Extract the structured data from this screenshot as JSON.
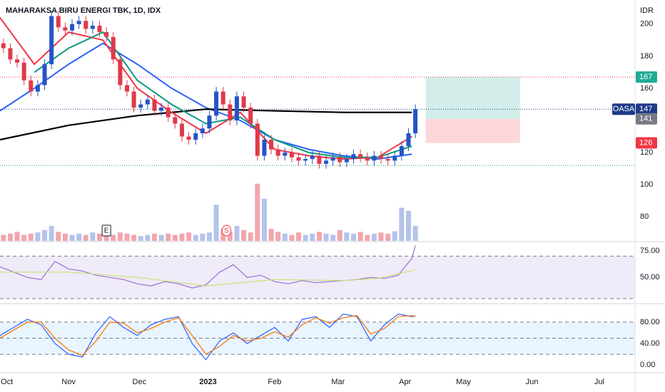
{
  "chart_data": [
    {
      "type": "candlestick",
      "title": "MAHARAKSA BIRU ENERGI TBK, 1D, IDX",
      "currency": "IDR",
      "up_color": "#2454c6",
      "down_color": "#e0394a",
      "xlim": [
        0,
        185
      ],
      "xticks": [
        {
          "value": 2,
          "label": "Oct"
        },
        {
          "value": 20,
          "label": "Nov"
        },
        {
          "value": 40.6,
          "label": "Dec"
        },
        {
          "value": 60.6,
          "label": "2023"
        },
        {
          "value": 80,
          "label": "Feb"
        },
        {
          "value": 98.5,
          "label": "Mar"
        },
        {
          "value": 118,
          "label": "Apr"
        },
        {
          "value": 135,
          "label": "May"
        },
        {
          "value": 155,
          "label": "Jun"
        },
        {
          "value": 174.6,
          "label": "Jul"
        }
      ],
      "ylim": [
        65,
        215
      ],
      "yticks": [
        80,
        100,
        120,
        160,
        180,
        200
      ],
      "grid": false,
      "x": [
        1,
        3,
        5,
        7,
        9,
        11,
        13,
        15,
        17,
        19,
        21,
        23,
        25,
        27,
        29,
        31,
        33,
        35,
        37,
        39,
        41,
        43,
        45,
        47,
        49,
        51,
        53,
        55,
        57,
        59,
        61,
        63,
        65,
        67,
        69,
        71,
        73,
        75,
        77,
        79,
        81,
        83,
        85,
        87,
        89,
        91,
        93,
        95,
        97,
        99,
        101,
        103,
        105,
        107,
        109,
        111,
        113,
        115,
        117,
        119,
        121
      ],
      "open": [
        188,
        185,
        178,
        176,
        165,
        158,
        162,
        175,
        205,
        198,
        196,
        200,
        202,
        197,
        199,
        195,
        192,
        178,
        162,
        158,
        148,
        150,
        153,
        146,
        148,
        142,
        138,
        130,
        128,
        132,
        135,
        143,
        158,
        150,
        140,
        155,
        148,
        138,
        118,
        128,
        122,
        118,
        120,
        117,
        115,
        116,
        118,
        113,
        115,
        117,
        114,
        116,
        119,
        117,
        115,
        118,
        116,
        115,
        118,
        124,
        132
      ],
      "high": [
        191,
        188,
        181,
        179,
        168,
        165,
        178,
        208,
        208,
        201,
        203,
        205,
        205,
        202,
        202,
        198,
        195,
        181,
        165,
        161,
        153,
        156,
        156,
        151,
        151,
        145,
        141,
        133,
        135,
        138,
        146,
        161,
        161,
        153,
        158,
        158,
        151,
        141,
        131,
        131,
        125,
        123,
        123,
        120,
        119,
        121,
        121,
        118,
        120,
        120,
        119,
        122,
        122,
        120,
        121,
        121,
        119,
        121,
        127,
        135,
        150
      ],
      "low": [
        182,
        175,
        173,
        162,
        155,
        155,
        159,
        172,
        195,
        193,
        193,
        197,
        194,
        194,
        192,
        189,
        175,
        159,
        155,
        145,
        145,
        147,
        143,
        143,
        139,
        135,
        127,
        125,
        125,
        129,
        132,
        140,
        147,
        137,
        137,
        145,
        135,
        115,
        115,
        119,
        115,
        115,
        114,
        112,
        112,
        113,
        110,
        110,
        112,
        111,
        111,
        113,
        114,
        112,
        112,
        113,
        112,
        112,
        115,
        121,
        129
      ],
      "close": [
        185,
        178,
        176,
        165,
        158,
        162,
        175,
        205,
        198,
        196,
        200,
        202,
        197,
        199,
        195,
        192,
        178,
        162,
        158,
        148,
        150,
        153,
        146,
        148,
        142,
        138,
        130,
        128,
        132,
        135,
        143,
        158,
        150,
        140,
        155,
        148,
        138,
        118,
        128,
        122,
        118,
        120,
        117,
        115,
        116,
        118,
        113,
        115,
        117,
        114,
        116,
        119,
        117,
        115,
        118,
        116,
        115,
        118,
        124,
        132,
        147
      ],
      "volume": [
        10,
        12,
        15,
        10,
        12,
        14,
        18,
        25,
        15,
        12,
        10,
        12,
        10,
        14,
        12,
        15,
        10,
        14,
        12,
        10,
        8,
        10,
        12,
        10,
        12,
        10,
        12,
        14,
        10,
        12,
        14,
        60,
        20,
        15,
        25,
        18,
        14,
        95,
        70,
        20,
        15,
        12,
        10,
        14,
        10,
        12,
        15,
        12,
        10,
        18,
        14,
        12,
        15,
        10,
        12,
        14,
        12,
        16,
        55,
        50,
        25
      ],
      "volume_ylim": [
        0,
        400
      ],
      "mas": [
        {
          "color": "#2962ff",
          "x": [
            0,
            10,
            20,
            30,
            40,
            50,
            60,
            70,
            80,
            90,
            100,
            110,
            120
          ],
          "values": [
            146,
            160,
            175,
            188,
            175,
            160,
            148,
            140,
            128,
            122,
            118,
            116,
            119
          ]
        },
        {
          "color": "#000000",
          "x": [
            0,
            20,
            40,
            60,
            80,
            100,
            120
          ],
          "values": [
            128,
            137,
            143,
            147,
            146,
            145,
            145
          ]
        },
        {
          "color": "#f23645",
          "x": [
            0,
            10,
            20,
            30,
            40,
            50,
            60,
            70,
            80,
            90,
            100,
            110,
            120
          ],
          "values": [
            204,
            175,
            195,
            190,
            160,
            145,
            132,
            145,
            122,
            118,
            116,
            117,
            130
          ]
        },
        {
          "color": "#089981",
          "x": [
            10,
            20,
            30,
            40,
            50,
            60,
            70,
            80,
            90,
            100,
            110,
            120
          ],
          "values": [
            170,
            185,
            195,
            165,
            150,
            138,
            142,
            128,
            120,
            117,
            117,
            124
          ]
        }
      ],
      "position": {
        "start": 124,
        "end": 151.5,
        "target": 167,
        "entry": 141,
        "stop": 126
      },
      "support_level": 112,
      "support_color": "#089981",
      "price_labels": [
        {
          "value": 167,
          "color": "#22ab94"
        },
        {
          "name": "OASA",
          "value": 147,
          "color": "#1e3a8a"
        },
        {
          "value": 141,
          "color": "#787b86"
        },
        {
          "value": 126,
          "color": "#f23645"
        }
      ],
      "annotations": [
        {
          "text": "E",
          "x": 31
        },
        {
          "text": "S",
          "x": 66
        }
      ]
    },
    {
      "type": "line",
      "ylim": [
        26,
        83
      ],
      "yticks": [
        {
          "value": 75,
          "label": "75.00"
        },
        {
          "value": 50,
          "label": "50.00"
        }
      ],
      "bands": [
        70,
        30
      ],
      "band_fill": "rgba(126,87,194,0.12)",
      "series": [
        {
          "color": "#9c6fd1",
          "x": [
            0,
            4,
            8,
            12,
            16,
            20,
            24,
            28,
            32,
            36,
            40,
            44,
            48,
            52,
            56,
            60,
            64,
            68,
            72,
            76,
            80,
            84,
            88,
            92,
            96,
            100,
            104,
            108,
            112,
            116,
            120,
            121
          ],
          "values": [
            60,
            55,
            50,
            48,
            65,
            58,
            56,
            52,
            50,
            48,
            44,
            42,
            46,
            44,
            40,
            43,
            55,
            62,
            50,
            52,
            46,
            44,
            47,
            45,
            46,
            47,
            48,
            50,
            49,
            52,
            68,
            80
          ]
        },
        {
          "color": "#c6e377",
          "x": [
            0,
            20,
            40,
            60,
            80,
            100,
            110,
            121
          ],
          "values": [
            55,
            55,
            50,
            42,
            48,
            47,
            49,
            57
          ]
        }
      ]
    },
    {
      "type": "line",
      "ylim": [
        -13,
        113
      ],
      "yticks": [
        {
          "value": 80,
          "label": "80.00"
        },
        {
          "value": 40,
          "label": "40.00"
        },
        {
          "value": 0,
          "label": "0.00"
        }
      ],
      "bands": [
        80,
        50,
        20
      ],
      "band_fill": "rgba(33,150,243,0.1)",
      "series": [
        {
          "color": "#2962ff",
          "x": [
            0,
            4,
            8,
            12,
            16,
            20,
            24,
            28,
            32,
            36,
            40,
            44,
            48,
            52,
            56,
            60,
            64,
            68,
            72,
            76,
            80,
            84,
            88,
            92,
            96,
            100,
            104,
            108,
            112,
            116,
            120,
            121
          ],
          "values": [
            55,
            70,
            85,
            75,
            40,
            20,
            15,
            60,
            90,
            70,
            55,
            75,
            85,
            90,
            40,
            10,
            45,
            60,
            40,
            55,
            70,
            45,
            85,
            90,
            70,
            95,
            90,
            45,
            75,
            95,
            90,
            92
          ]
        },
        {
          "color": "#ff6d00",
          "x": [
            0,
            4,
            8,
            12,
            16,
            20,
            24,
            28,
            32,
            36,
            40,
            44,
            48,
            52,
            56,
            60,
            64,
            68,
            72,
            76,
            80,
            84,
            88,
            92,
            96,
            100,
            104,
            108,
            112,
            116,
            120,
            121
          ],
          "values": [
            50,
            65,
            80,
            80,
            50,
            28,
            18,
            45,
            80,
            78,
            60,
            68,
            80,
            88,
            55,
            20,
            35,
            55,
            45,
            50,
            62,
            52,
            75,
            88,
            78,
            88,
            92,
            58,
            68,
            90,
            92,
            90
          ]
        }
      ]
    }
  ]
}
